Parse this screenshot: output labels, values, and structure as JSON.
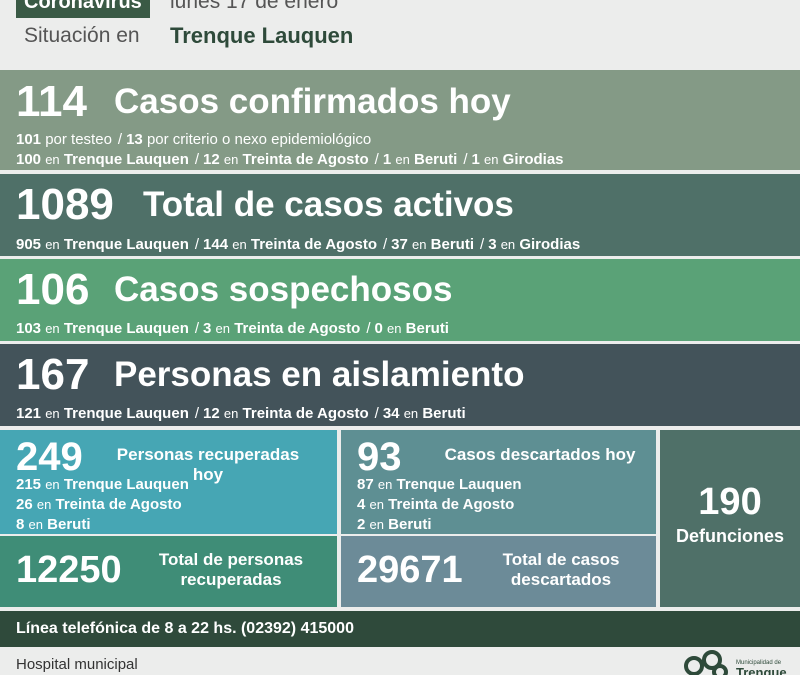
{
  "header": {
    "badge": "Coronavirus",
    "date": "lunes 17 de enero",
    "situation_label": "Situación en",
    "city": "Trenque Lauquen"
  },
  "confirmed": {
    "number": "114",
    "title": "Casos confirmados hoy",
    "line1": [
      {
        "value": "101",
        "text": "por testeo"
      },
      {
        "value": "13",
        "text": "por criterio o nexo epidemiológico"
      }
    ],
    "line2": [
      {
        "value": "100",
        "en": "en",
        "place": "Trenque Lauquen"
      },
      {
        "value": "12",
        "en": "en",
        "place": "Treinta de Agosto"
      },
      {
        "value": "1",
        "en": "en",
        "place": "Beruti"
      },
      {
        "value": "1",
        "en": "en",
        "place": "Girodias"
      }
    ]
  },
  "active": {
    "number": "1089",
    "title": "Total de casos activos",
    "items": [
      {
        "value": "905",
        "en": "en",
        "place": "Trenque Lauquen"
      },
      {
        "value": "144",
        "en": "en",
        "place": "Treinta de Agosto"
      },
      {
        "value": "37",
        "en": "en",
        "place": "Beruti"
      },
      {
        "value": "3",
        "en": "en",
        "place": "Girodias"
      }
    ]
  },
  "suspected": {
    "number": "106",
    "title": "Casos sospechosos",
    "items": [
      {
        "value": "103",
        "en": "en",
        "place": "Trenque Lauquen"
      },
      {
        "value": "3",
        "en": "en",
        "place": "Treinta de Agosto"
      },
      {
        "value": "0",
        "en": "en",
        "place": "Beruti"
      }
    ]
  },
  "isolation": {
    "number": "167",
    "title": "Personas en aislamiento",
    "items": [
      {
        "value": "121",
        "en": "en",
        "place": "Trenque Lauquen"
      },
      {
        "value": "12",
        "en": "en",
        "place": "Treinta de Agosto"
      },
      {
        "value": "34",
        "en": "en",
        "place": "Beruti"
      }
    ]
  },
  "recovered": {
    "number": "249",
    "title_line1": "Personas recuperadas",
    "title_line2": "hoy",
    "items": [
      {
        "value": "215",
        "en": "en",
        "place": "Trenque Lauquen"
      },
      {
        "value": "26",
        "en": "en",
        "place": "Treinta de Agosto"
      },
      {
        "value": "8",
        "en": "en",
        "place": "Beruti"
      }
    ]
  },
  "recovered_total": {
    "number": "12250",
    "label_line1": "Total de personas",
    "label_line2": "recuperadas"
  },
  "discarded": {
    "number": "93",
    "title": "Casos descartados hoy",
    "items": [
      {
        "value": "87",
        "en": "en",
        "place": "Trenque Lauquen"
      },
      {
        "value": "4",
        "en": "en",
        "place": "Treinta de Agosto"
      },
      {
        "value": "2",
        "en": "en",
        "place": "Beruti"
      }
    ]
  },
  "discarded_total": {
    "number": "29671",
    "label_line1": "Total de casos",
    "label_line2": "descartados"
  },
  "deaths": {
    "number": "190",
    "label": "Defunciones"
  },
  "footer": {
    "phone_line": "Línea telefónica de 8 a 22 hs. (02392) 415000",
    "hospital": "Hospital municipal",
    "logo_small": "Municipalidad de",
    "logo_big": "Trenque"
  },
  "colors": {
    "confirmed": "#849a86",
    "active": "#4f7068",
    "suspected": "#5aa277",
    "isolation": "#43535a",
    "recovered": "#46a6b4",
    "recovered_total": "#3f8d77",
    "discarded": "#5e8f93",
    "discarded_total": "#6c8b98",
    "deaths": "#4f7068",
    "footer": "#2f4a3b"
  }
}
